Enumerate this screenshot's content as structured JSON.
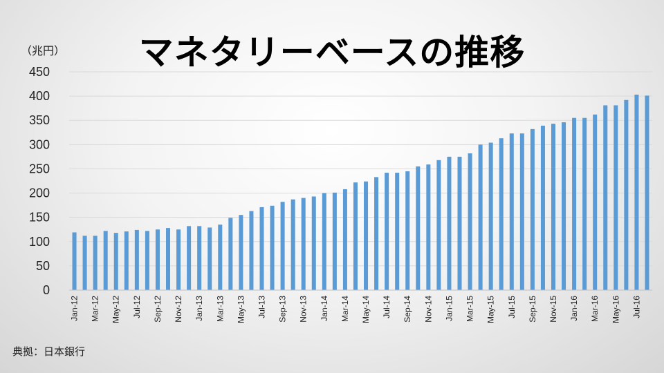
{
  "title": "マネタリーベースの推移",
  "unit": "（兆円）",
  "source": "典拠：日本銀行",
  "colors": {
    "bar": "#5b9bd5",
    "grid": "#d9d9d9",
    "axis": "#bfbfbf"
  },
  "chart_data": {
    "type": "bar",
    "title": "マネタリーベースの推移",
    "ylabel": "（兆円）",
    "xlabel": "",
    "ylim": [
      0,
      450
    ],
    "yticks": [
      0,
      50,
      100,
      150,
      200,
      250,
      300,
      350,
      400,
      450
    ],
    "grid": true,
    "legend": "none",
    "categories": [
      "Jan-12",
      "Feb-12",
      "Mar-12",
      "Apr-12",
      "May-12",
      "Jun-12",
      "Jul-12",
      "Aug-12",
      "Sep-12",
      "Oct-12",
      "Nov-12",
      "Dec-12",
      "Jan-13",
      "Feb-13",
      "Mar-13",
      "Apr-13",
      "May-13",
      "Jun-13",
      "Jul-13",
      "Aug-13",
      "Sep-13",
      "Oct-13",
      "Nov-13",
      "Dec-13",
      "Jan-14",
      "Feb-14",
      "Mar-14",
      "Apr-14",
      "May-14",
      "Jun-14",
      "Jul-14",
      "Aug-14",
      "Sep-14",
      "Oct-14",
      "Nov-14",
      "Dec-14",
      "Jan-15",
      "Feb-15",
      "Mar-15",
      "Apr-15",
      "May-15",
      "Jun-15",
      "Jul-15",
      "Aug-15",
      "Sep-15",
      "Oct-15",
      "Nov-15",
      "Dec-15",
      "Jan-16",
      "Feb-16",
      "Mar-16",
      "Apr-16",
      "May-16",
      "Jun-16",
      "Jul-16",
      "Aug-16"
    ],
    "tick_labels": [
      "Jan-12",
      "Mar-12",
      "May-12",
      "Jul-12",
      "Sep-12",
      "Nov-12",
      "Jan-13",
      "Mar-13",
      "May-13",
      "Jul-13",
      "Sep-13",
      "Nov-13",
      "Jan-14",
      "Mar-14",
      "May-14",
      "Jul-14",
      "Sep-14",
      "Nov-14",
      "Jan-15",
      "Mar-15",
      "May-15",
      "Jul-15",
      "Sep-15",
      "Nov-15",
      "Jan-16",
      "Mar-16",
      "May-16",
      "Jul-16"
    ],
    "values": [
      119,
      112,
      112,
      122,
      118,
      121,
      124,
      122,
      125,
      128,
      125,
      132,
      132,
      129,
      135,
      149,
      155,
      163,
      171,
      174,
      182,
      187,
      190,
      193,
      200,
      201,
      208,
      222,
      224,
      233,
      242,
      242,
      245,
      255,
      259,
      268,
      275,
      275,
      282,
      300,
      304,
      313,
      323,
      323,
      332,
      339,
      343,
      346,
      355,
      355,
      362,
      381,
      381,
      392,
      403,
      401
    ]
  }
}
